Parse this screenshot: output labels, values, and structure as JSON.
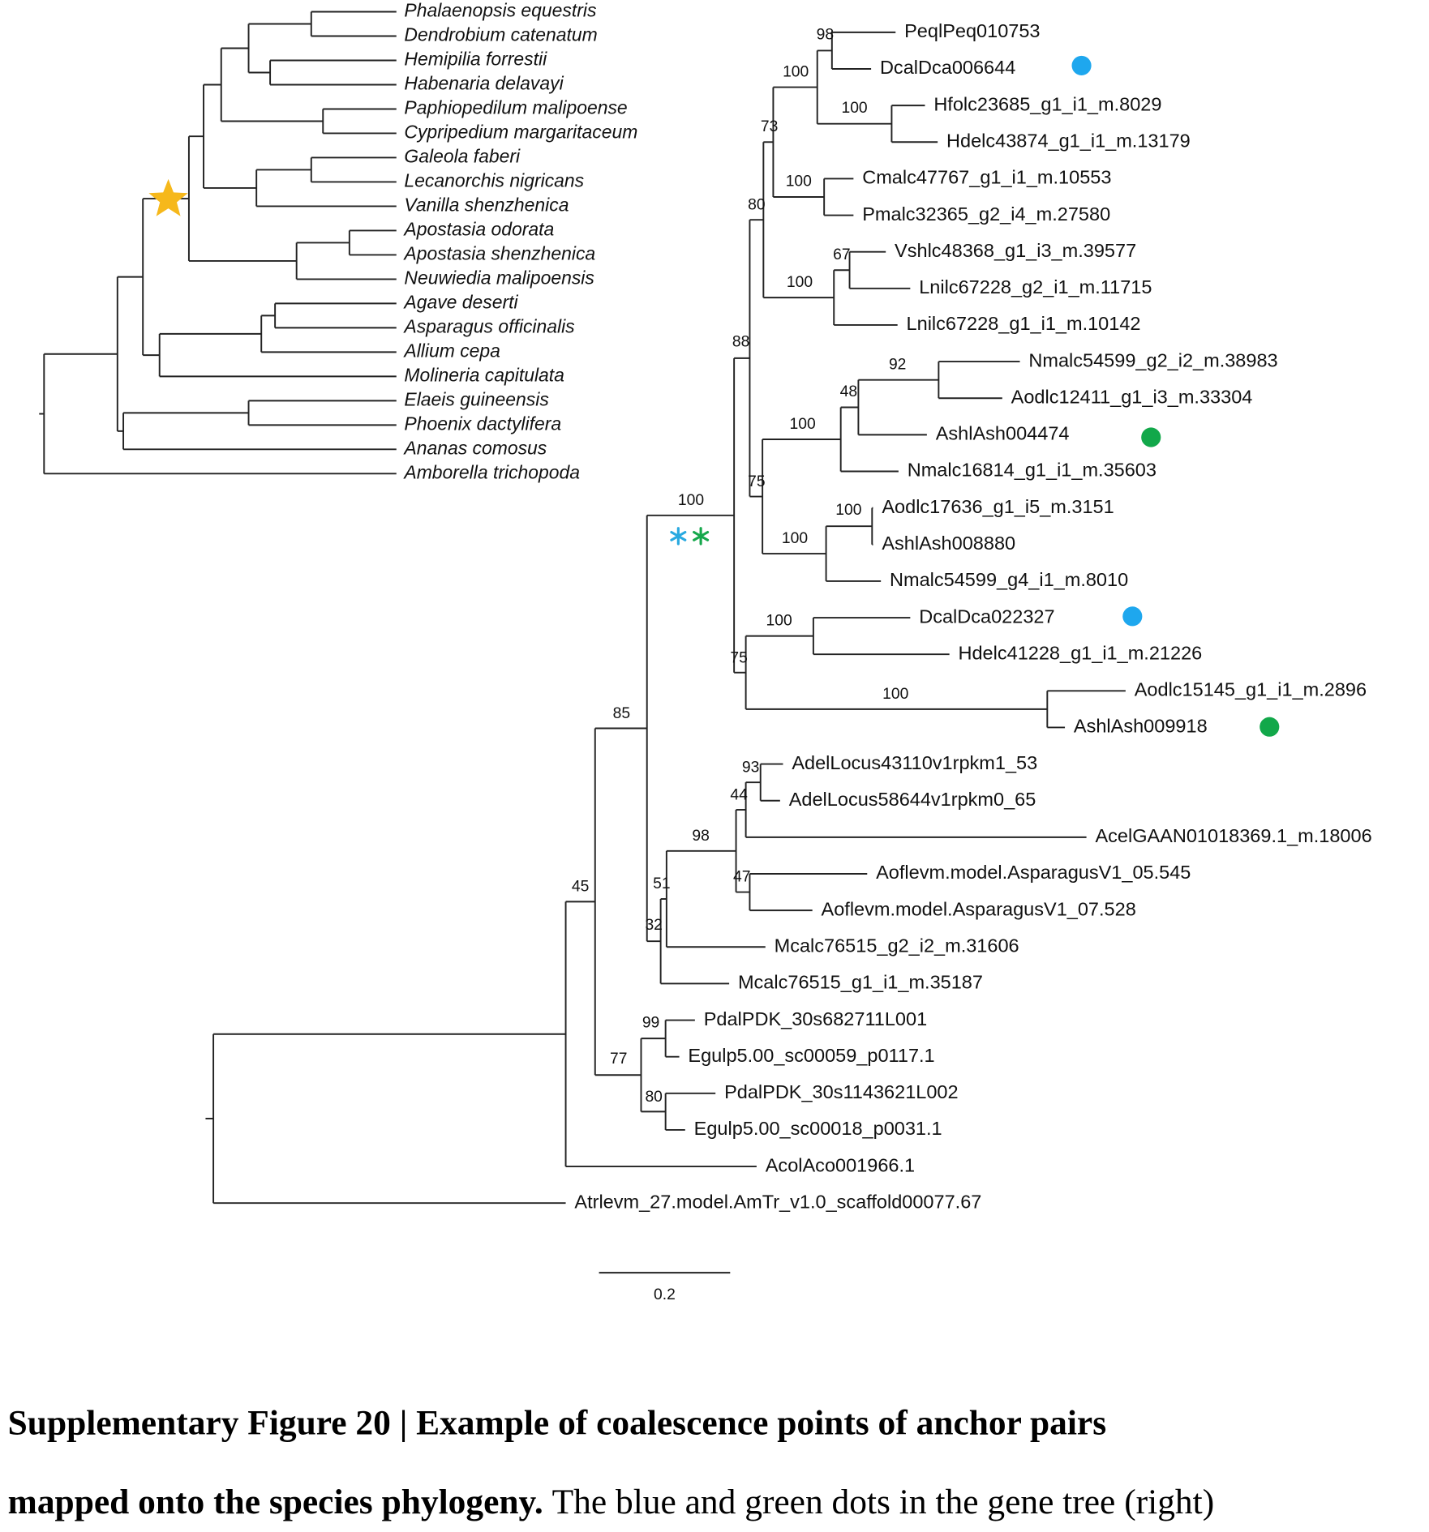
{
  "species_tree": {
    "taxa": [
      "Phalaenopsis equestris",
      "Dendrobium catenatum",
      "Hemipilia forrestii",
      "Habenaria delavayi",
      "Paphiopedilum malipoense",
      "Cypripedium margaritaceum",
      "Galeola faberi",
      "Lecanorchis nigricans",
      "Vanilla shenzhenica",
      "Apostasia odorata",
      "Apostasia shenzhenica",
      "Neuwiedia malipoensis",
      "Agave deserti",
      "Asparagus officinalis",
      "Allium cepa",
      "Molineria capitulata",
      "Elaeis guineensis",
      "Phoenix dactylifera",
      "Ananas comosus",
      "Amborella trichopoda"
    ]
  },
  "gene_tree": {
    "taxa": [
      "PeqlPeq010753",
      "DcalDca006644",
      "Hfolc23685_g1_i1_m.8029",
      "Hdelc43874_g1_i1_m.13179",
      "Cmalc47767_g1_i1_m.10553",
      "Pmalc32365_g2_i4_m.27580",
      "Vshlc48368_g1_i3_m.39577",
      "Lnilc67228_g2_i1_m.11715",
      "Lnilc67228_g1_i1_m.10142",
      "Nmalc54599_g2_i2_m.38983",
      "Aodlc12411_g1_i3_m.33304",
      "AshlAsh004474",
      "Nmalc16814_g1_i1_m.35603",
      "Aodlc17636_g1_i5_m.3151",
      "AshlAsh008880",
      "Nmalc54599_g4_i1_m.8010",
      "DcalDca022327",
      "Hdelc41228_g1_i1_m.21226",
      "Aodlc15145_g1_i1_m.2896",
      "AshlAsh009918",
      "AdelLocus43110v1rpkm1_53",
      "AdelLocus58644v1rpkm0_65",
      "AcelGAAN01018369.1_m.18006",
      "Aoflevm.model.AsparagusV1_05.545",
      "Aoflevm.model.AsparagusV1_07.528",
      "Mcalc76515_g2_i2_m.31606",
      "Mcalc76515_g1_i1_m.35187",
      "PdalPDK_30s682711L001",
      "Egulp5.00_sc00059_p0117.1",
      "PdalPDK_30s1143621L002",
      "Egulp5.00_sc00018_p0031.1",
      "AcolAco001966.1",
      "Atrlevm_27.model.AmTr_v1.0_scaffold00077.67"
    ],
    "support": [
      98,
      100,
      100,
      73,
      100,
      80,
      67,
      100,
      88,
      92,
      48,
      100,
      75,
      100,
      100,
      100,
      100,
      75,
      100,
      85,
      93,
      44,
      98,
      51,
      45,
      47,
      32,
      99,
      77,
      80
    ]
  },
  "scale_bar": {
    "label": 0.2
  },
  "caption": {
    "title": [
      "Supplementary Figure 20 | Example of coalescence points of anchor pairs",
      "mapped onto the species phylogeny."
    ],
    "text": "The blue and green dots in the gene tree (right)"
  }
}
